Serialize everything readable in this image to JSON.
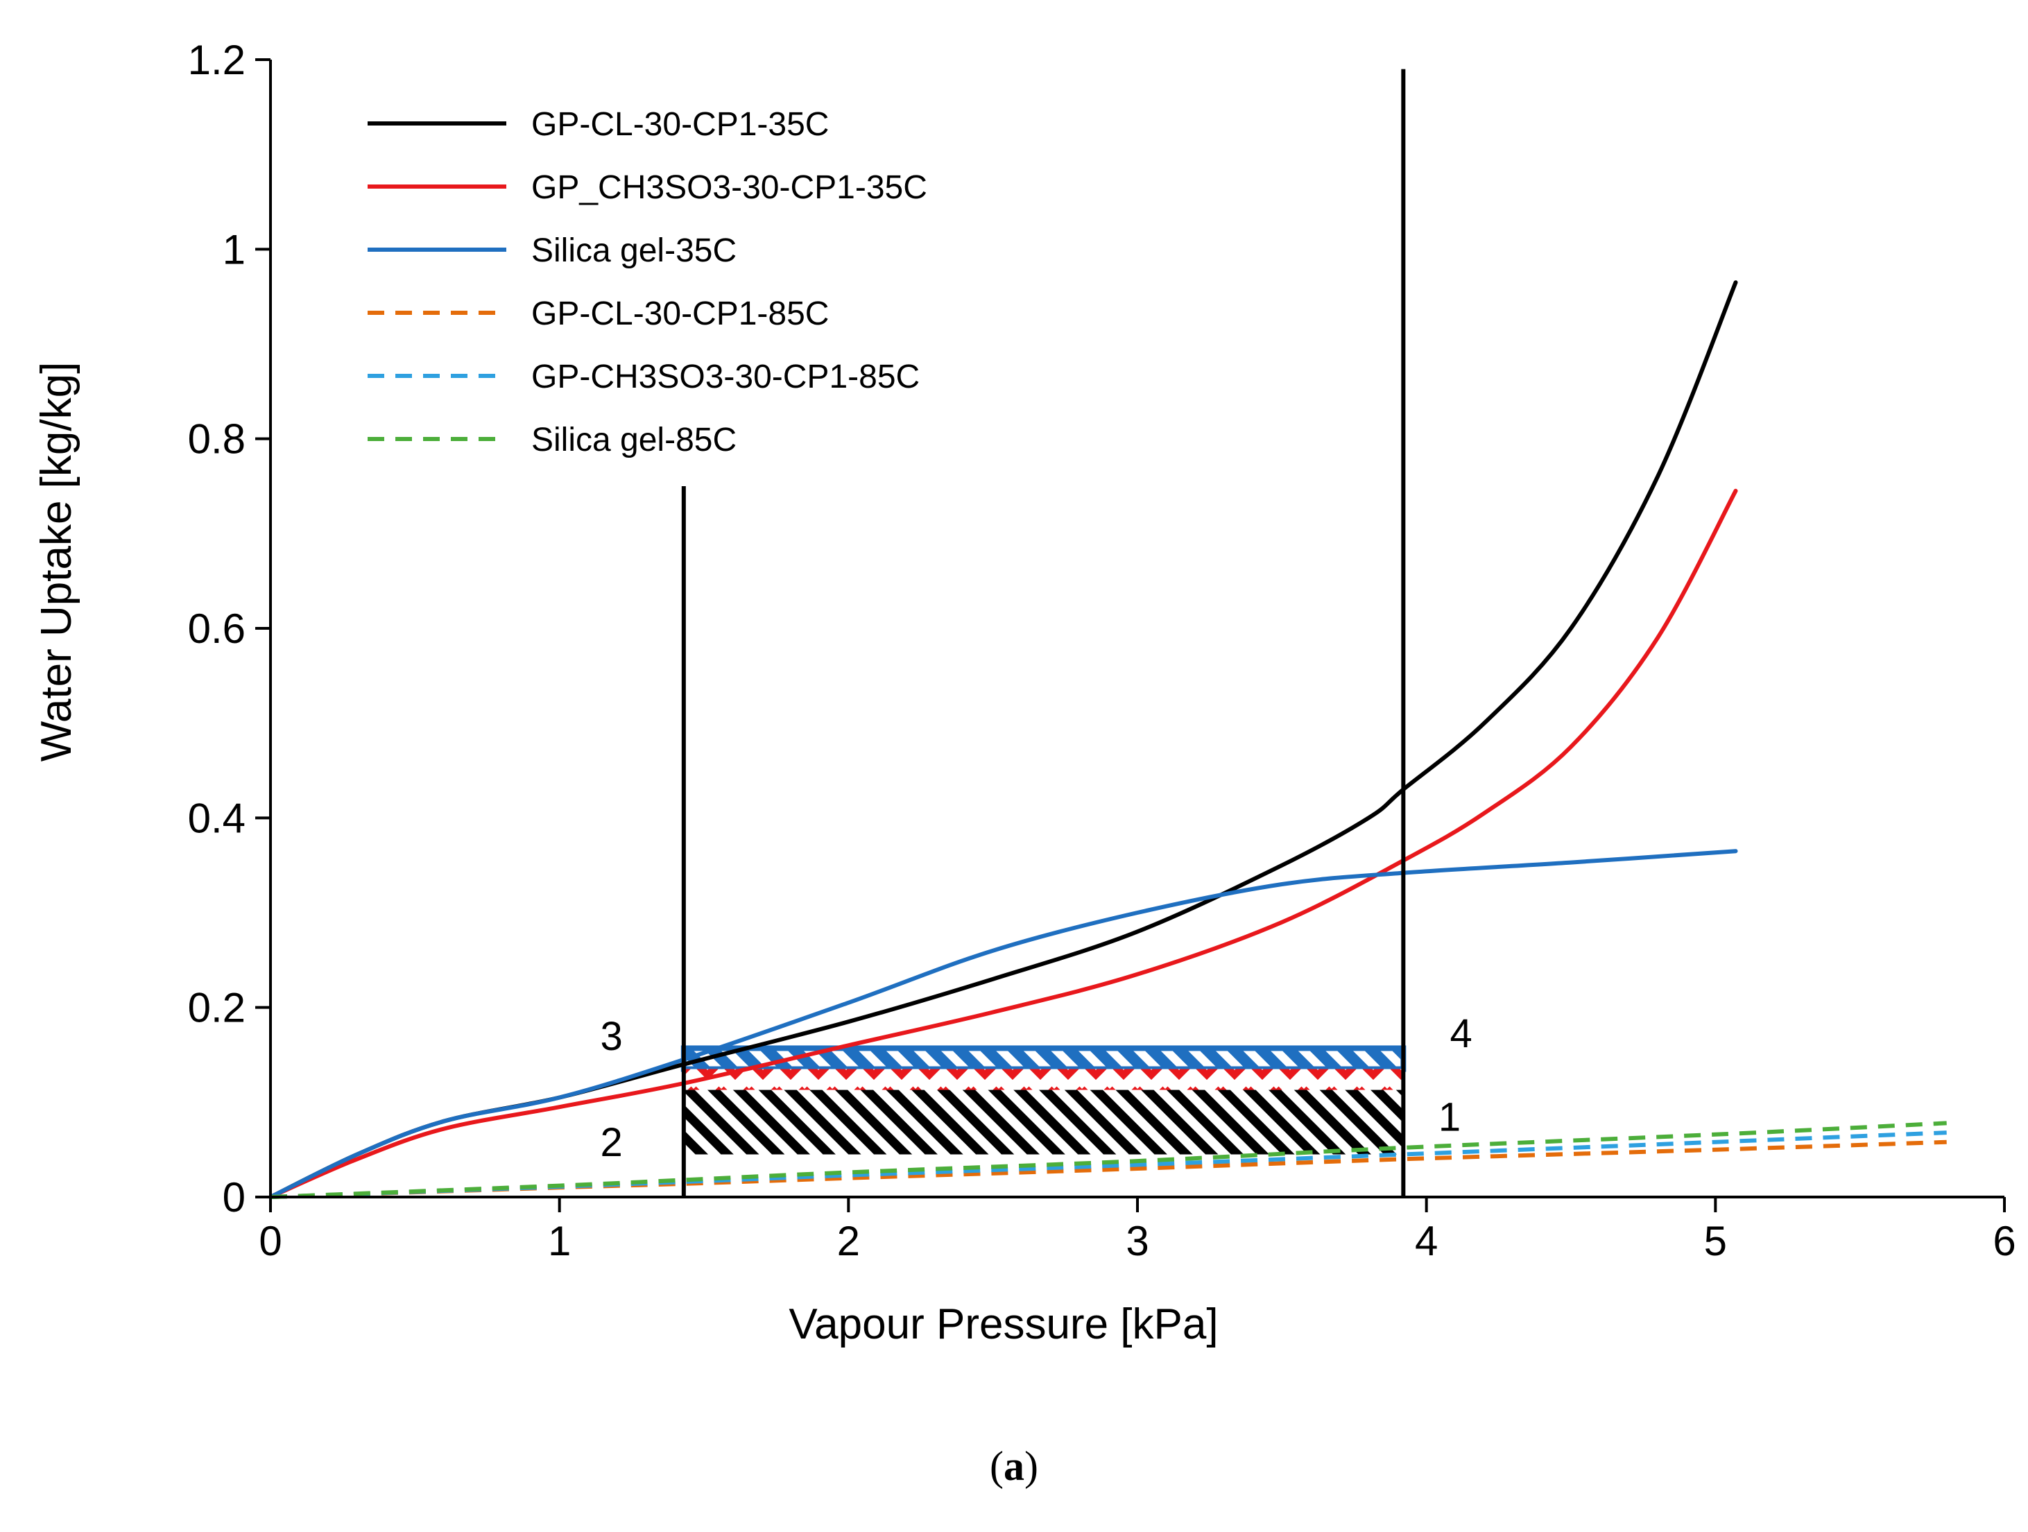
{
  "chart_data": {
    "type": "line",
    "title": "",
    "xlabel": "Vapour Pressure [kPa]",
    "ylabel": "Water Uptake [kg/kg]",
    "xlim": [
      0,
      6
    ],
    "ylim": [
      0,
      1.2
    ],
    "xticks": [
      0,
      1,
      2,
      3,
      4,
      5,
      6
    ],
    "xtick_labels": [
      "0",
      "1",
      "2",
      "3",
      "4",
      "5",
      "6"
    ],
    "yticks": [
      0,
      0.2,
      0.4,
      0.6,
      0.8,
      1,
      1.2
    ],
    "ytick_labels": [
      "0",
      "0.2",
      "0.4",
      "0.6",
      "0.8",
      "1",
      "1.2"
    ],
    "grid": false,
    "legend_position": "top-left",
    "series": [
      {
        "name": "GP-CL-30-CP1-35C",
        "color": "#000000",
        "dash": "solid",
        "x": [
          0,
          0.3,
          0.6,
          1.0,
          1.43,
          2.0,
          2.5,
          3.0,
          3.5,
          3.8,
          3.92,
          4.2,
          4.5,
          4.8,
          5.07
        ],
        "y": [
          0,
          0.045,
          0.08,
          0.105,
          0.14,
          0.185,
          0.23,
          0.28,
          0.35,
          0.4,
          0.43,
          0.5,
          0.6,
          0.76,
          0.965
        ]
      },
      {
        "name": "GP_CH3SO3-30-CP1-35C",
        "color": "#e8181c",
        "dash": "solid",
        "x": [
          0,
          0.3,
          0.6,
          1.0,
          1.43,
          2.0,
          2.5,
          3.0,
          3.5,
          3.92,
          4.2,
          4.5,
          4.8,
          5.07
        ],
        "y": [
          0,
          0.04,
          0.072,
          0.095,
          0.12,
          0.16,
          0.195,
          0.235,
          0.29,
          0.355,
          0.405,
          0.475,
          0.59,
          0.745
        ]
      },
      {
        "name": "Silica gel-35C",
        "color": "#1f6fc0",
        "dash": "solid",
        "x": [
          0,
          0.3,
          0.6,
          1.0,
          1.43,
          2.0,
          2.5,
          3.0,
          3.5,
          3.92,
          4.5,
          5.07
        ],
        "y": [
          0,
          0.045,
          0.08,
          0.105,
          0.145,
          0.205,
          0.26,
          0.3,
          0.33,
          0.342,
          0.353,
          0.365
        ]
      },
      {
        "name": "GP-CL-30-CP1-85C",
        "color": "#e46c0a",
        "dash": "dashed",
        "x": [
          0,
          1.0,
          1.43,
          2.0,
          3.0,
          3.92,
          5.0,
          5.8
        ],
        "y": [
          0,
          0.01,
          0.014,
          0.02,
          0.03,
          0.04,
          0.05,
          0.058
        ]
      },
      {
        "name": "GP-CH3SO3-30-CP1-85C",
        "color": "#2ea0e0",
        "dash": "dashed",
        "x": [
          0,
          1.0,
          1.43,
          2.0,
          3.0,
          3.92,
          5.0,
          5.8
        ],
        "y": [
          0,
          0.011,
          0.016,
          0.023,
          0.034,
          0.045,
          0.058,
          0.068
        ]
      },
      {
        "name": "Silica gel-85C",
        "color": "#4cae3a",
        "dash": "dashed",
        "x": [
          0,
          1.0,
          1.43,
          2.0,
          3.0,
          3.92,
          5.0,
          5.8
        ],
        "y": [
          0,
          0.012,
          0.018,
          0.026,
          0.038,
          0.052,
          0.066,
          0.078
        ]
      }
    ],
    "vertical_lines": [
      {
        "x": 1.43,
        "y": [
          0,
          0.75
        ]
      },
      {
        "x": 3.92,
        "y": [
          0,
          1.19
        ]
      }
    ],
    "cycle_bands": [
      {
        "fill": "white-hatch",
        "color": "#1f6fc0",
        "x": [
          1.43,
          3.92
        ],
        "y": [
          0.135,
          0.157
        ]
      },
      {
        "fill": "chevron",
        "color": "#e8181c",
        "x": [
          1.43,
          3.92
        ],
        "y": [
          0.113,
          0.135
        ]
      },
      {
        "fill": "hatch",
        "color": "#000000",
        "x": [
          1.43,
          3.92
        ],
        "y": [
          0.045,
          0.113
        ]
      }
    ],
    "annotations": [
      {
        "text": "1",
        "x": 4.08,
        "y": 0.07
      },
      {
        "text": "2",
        "x": 1.18,
        "y": 0.043
      },
      {
        "text": "3",
        "x": 1.18,
        "y": 0.155
      },
      {
        "text": "4",
        "x": 4.12,
        "y": 0.158
      }
    ]
  },
  "caption": {
    "open": "(",
    "label": "a",
    "close": ")"
  }
}
